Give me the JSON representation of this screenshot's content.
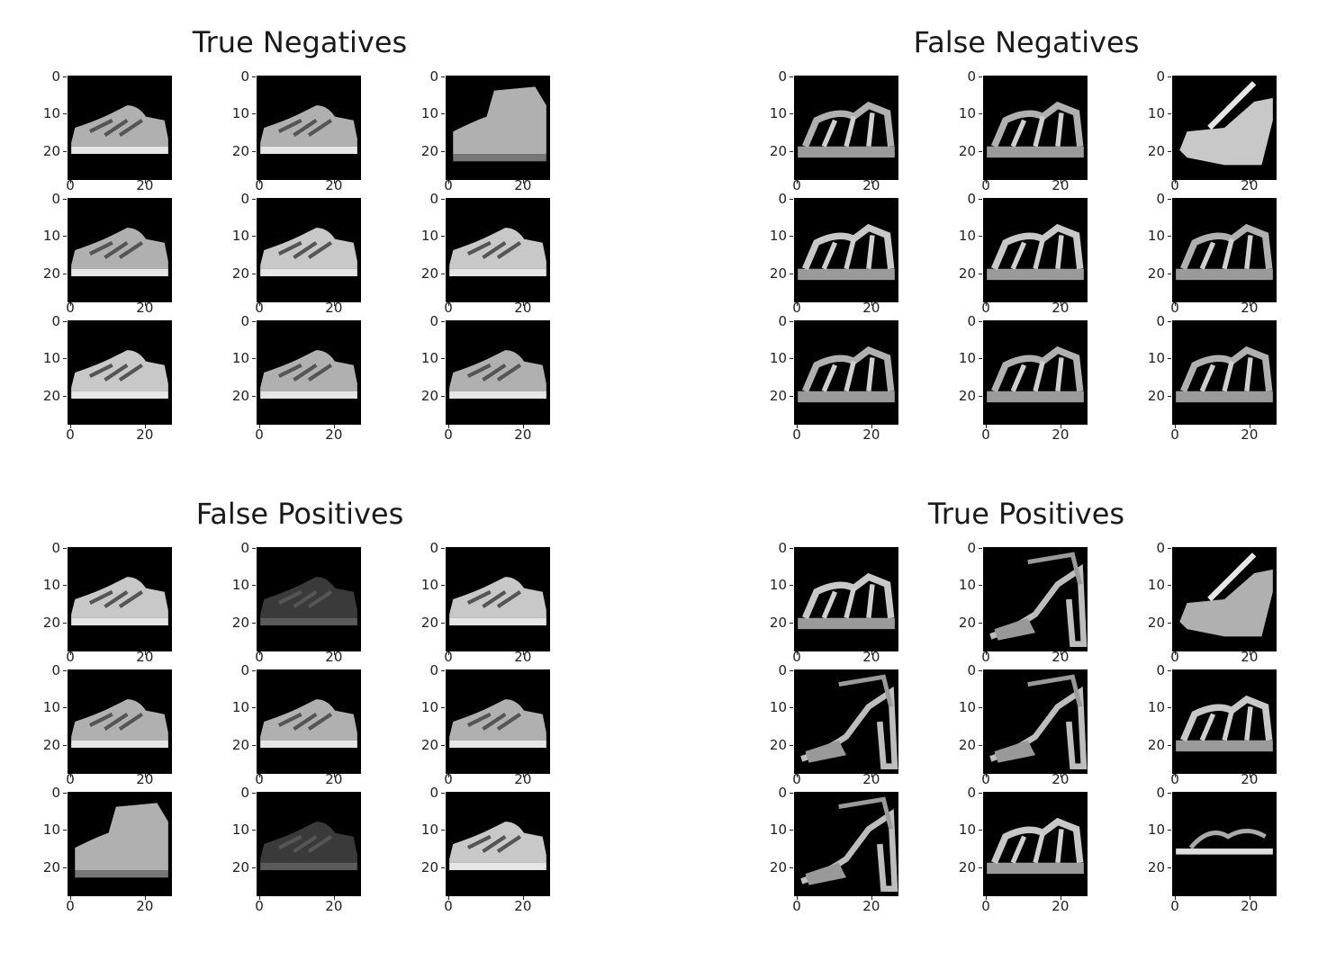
{
  "chart_data": [
    {
      "type": "image-grid",
      "title": "True Negatives",
      "grid": [
        3,
        3
      ],
      "image_shape": [
        28,
        28
      ],
      "colormap": "gray",
      "xticks": [
        "0",
        "20"
      ],
      "yticks": [
        "0",
        "10",
        "20"
      ],
      "thumbnails": [
        "sneaker",
        "sneaker",
        "ankle-boot",
        "sneaker",
        "sneaker",
        "sneaker",
        "sneaker",
        "sneaker",
        "sneaker"
      ]
    },
    {
      "type": "image-grid",
      "title": "False Negatives",
      "grid": [
        3,
        3
      ],
      "image_shape": [
        28,
        28
      ],
      "colormap": "gray",
      "xticks": [
        "0",
        "20"
      ],
      "yticks": [
        "0",
        "10",
        "20"
      ],
      "thumbnails": [
        "sandal",
        "sandal",
        "wedge-sandal",
        "sandal",
        "sandal",
        "sandal",
        "sandal",
        "sandal",
        "sandal"
      ]
    },
    {
      "type": "image-grid",
      "title": "False Positives",
      "grid": [
        3,
        3
      ],
      "image_shape": [
        28,
        28
      ],
      "colormap": "gray",
      "xticks": [
        "0",
        "20"
      ],
      "yticks": [
        "0",
        "10",
        "20"
      ],
      "thumbnails": [
        "sneaker",
        "sneaker-dark",
        "sneaker",
        "sneaker",
        "sneaker",
        "sneaker",
        "ankle-boot",
        "sneaker-dark",
        "sneaker"
      ]
    },
    {
      "type": "image-grid",
      "title": "True Positives",
      "grid": [
        3,
        3
      ],
      "image_shape": [
        28,
        28
      ],
      "colormap": "gray",
      "xticks": [
        "0",
        "20"
      ],
      "yticks": [
        "0",
        "10",
        "20"
      ],
      "thumbnails": [
        "sandal",
        "high-heel-sandal",
        "platform-heel",
        "heel-sandal",
        "high-heel-sandal",
        "sandal",
        "heel-sandal",
        "sandal",
        "flat-sandal"
      ]
    }
  ]
}
